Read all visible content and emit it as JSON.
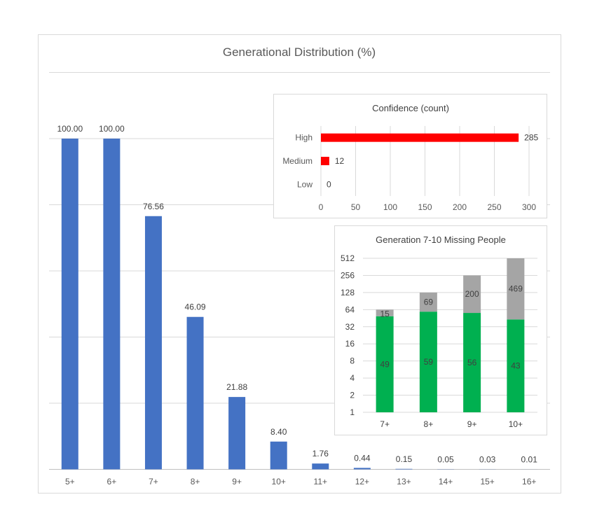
{
  "chart_data": [
    {
      "type": "bar",
      "title": "Generational Distribution (%)",
      "categories": [
        "5+",
        "6+",
        "7+",
        "8+",
        "9+",
        "10+",
        "11+",
        "12+",
        "13+",
        "14+",
        "15+",
        "16+"
      ],
      "values": [
        100.0,
        100.0,
        76.56,
        46.09,
        21.88,
        8.4,
        1.76,
        0.44,
        0.15,
        0.05,
        0.03,
        0.01
      ],
      "value_labels": [
        "100.00",
        "100.00",
        "76.56",
        "46.09",
        "21.88",
        "8.40",
        "1.76",
        "0.44",
        "0.15",
        "0.05",
        "0.03",
        "0.01"
      ],
      "ylim": [
        0,
        100
      ],
      "grid": true,
      "color": "#4472C4"
    },
    {
      "type": "bar",
      "orientation": "horizontal",
      "title": "Confidence (count)",
      "categories": [
        "High",
        "Medium",
        "Low"
      ],
      "values": [
        285,
        12,
        0
      ],
      "value_labels": [
        "285",
        "12",
        "0"
      ],
      "xticks": [
        "0",
        "50",
        "100",
        "150",
        "200",
        "250",
        "300"
      ],
      "xlim": [
        0,
        300
      ],
      "grid": true,
      "color": "#FF0000"
    },
    {
      "type": "bar",
      "stacked": true,
      "scale": "log2",
      "title": "Generation 7-10 Missing People",
      "categories": [
        "7+",
        "8+",
        "9+",
        "10+"
      ],
      "series": [
        {
          "values": [
            49,
            59,
            56,
            43
          ],
          "labels": [
            "49",
            "59",
            "56",
            "43"
          ],
          "color": "#00B050"
        },
        {
          "values": [
            15,
            69,
            200,
            469
          ],
          "labels": [
            "15",
            "69",
            "200",
            "469"
          ],
          "color": "#A5A5A5"
        }
      ],
      "yticks": [
        "1",
        "2",
        "4",
        "8",
        "16",
        "32",
        "64",
        "128",
        "256",
        "512"
      ],
      "ylim": [
        1,
        512
      ],
      "grid": true
    }
  ]
}
